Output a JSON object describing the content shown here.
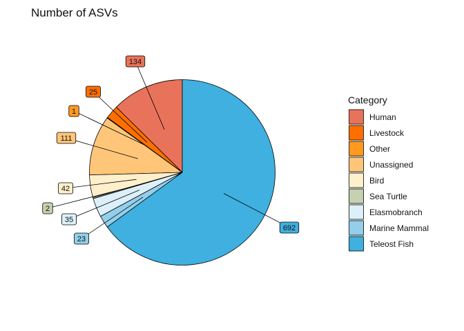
{
  "chart_data": {
    "type": "pie",
    "title": "Number of ASVs",
    "legend_title": "Category",
    "legend_position": "right",
    "start": "12 o'clock",
    "direction": "counter-clockwise",
    "slices": [
      {
        "label": "Human",
        "value": 134,
        "color": "#E8735A"
      },
      {
        "label": "Livestock",
        "value": 25,
        "color": "#FF6F00"
      },
      {
        "label": "Other",
        "value": 1,
        "color": "#FF9A1F"
      },
      {
        "label": "Unassigned",
        "value": 111,
        "color": "#FFC679"
      },
      {
        "label": "Bird",
        "value": 42,
        "color": "#FFF0CC"
      },
      {
        "label": "Sea Turtle",
        "value": 2,
        "color": "#C5D1B1"
      },
      {
        "label": "Elasmobranch",
        "value": 35,
        "color": "#DDF0FA"
      },
      {
        "label": "Marine Mammal",
        "value": 23,
        "color": "#93CFEA"
      },
      {
        "label": "Teleost Fish",
        "value": 692,
        "color": "#3FB0DF"
      }
    ]
  }
}
